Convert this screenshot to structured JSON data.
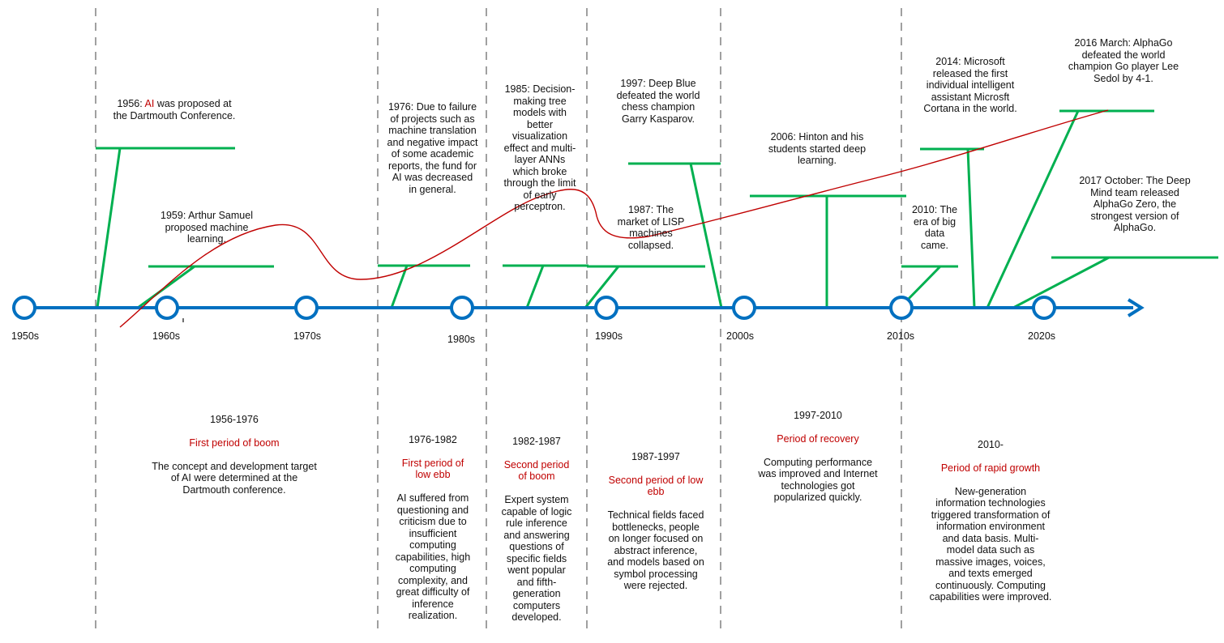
{
  "decades": [
    "1950s",
    "1960s",
    "1970s",
    "1980s",
    "1990s",
    "2000s",
    "2010s",
    "2020s"
  ],
  "colors": {
    "axis": "#0070c0",
    "marker": "#00b050",
    "curve": "#c00000",
    "accent": "#c00000",
    "divider": "#808080"
  },
  "events": {
    "e1956_a": "1956: ",
    "e1956_ai": "AI",
    "e1956_b": " was proposed at\nthe Dartmouth Conference.",
    "e1959": "1959: Arthur Samuel\nproposed machine\nlearning.",
    "e1976": "1976: Due to failure\nof projects such as\nmachine translation\nand negative impact\nof some academic\nreports, the fund for\nAI was decreased\nin general.",
    "e1985": "1985: Decision-\nmaking tree\nmodels with\nbetter\nvisualization\neffect and multi-\nlayer ANNs\nwhich broke\nthrough the limit\nof early\nperceptron.",
    "e1997": "1997: Deep Blue\ndefeated the world\nchess champion\nGarry Kasparov.",
    "e1987": "1987: The\nmarket of LISP\nmachines\ncollapsed.",
    "e2006": "2006: Hinton and his\nstudents started deep\nlearning.",
    "e2010": "2010: The\nera of big\ndata\ncame.",
    "e2014": "2014: Microsoft\nreleased the first\nindividual intelligent\nassistant Microsft\nCortana in the world.",
    "e2016": "2016 March: AlphaGo\ndefeated the world\nchampion Go player Lee\nSedol by 4-1.",
    "e2017": "2017 October: The Deep\nMind team released\nAlphaGo Zero, the\nstrongest version of\nAlphaGo."
  },
  "periods": [
    {
      "years": "1956-1976",
      "name": "First period of boom",
      "desc": "The concept and development target\nof AI were determined at the\nDartmouth conference."
    },
    {
      "years": "1976-1982",
      "name": "First period of\nlow ebb",
      "desc": "AI suffered from\nquestioning and\ncriticism due to\ninsufficient\ncomputing\ncapabilities, high\ncomputing\ncomplexity, and\ngreat difficulty of\ninference\nrealization."
    },
    {
      "years": "1982-1987",
      "name": "Second period\nof boom",
      "desc": "Expert system\ncapable of logic\nrule inference\nand answering\nquestions of\nspecific fields\nwent popular\nand fifth-\ngeneration\ncomputers\ndeveloped."
    },
    {
      "years": "1987-1997",
      "name": "Second period of low\nebb",
      "desc": "Technical fields faced\nbottlenecks, people\non longer focused on\nabstract inference,\nand models based on\nsymbol processing\nwere rejected."
    },
    {
      "years": "1997-2010",
      "name": "Period of recovery",
      "desc": "Computing performance\nwas improved and Internet\ntechnologies got\npopularized quickly."
    },
    {
      "years": "2010-",
      "name": "Period of rapid growth",
      "desc": "New-generation\ninformation technologies\ntriggered transformation of\ninformation environment\nand data basis. Multi-\nmodel data such as\nmassive images, voices,\nand texts emerged\ncontinuously. Computing\ncapabilities were improved."
    }
  ]
}
